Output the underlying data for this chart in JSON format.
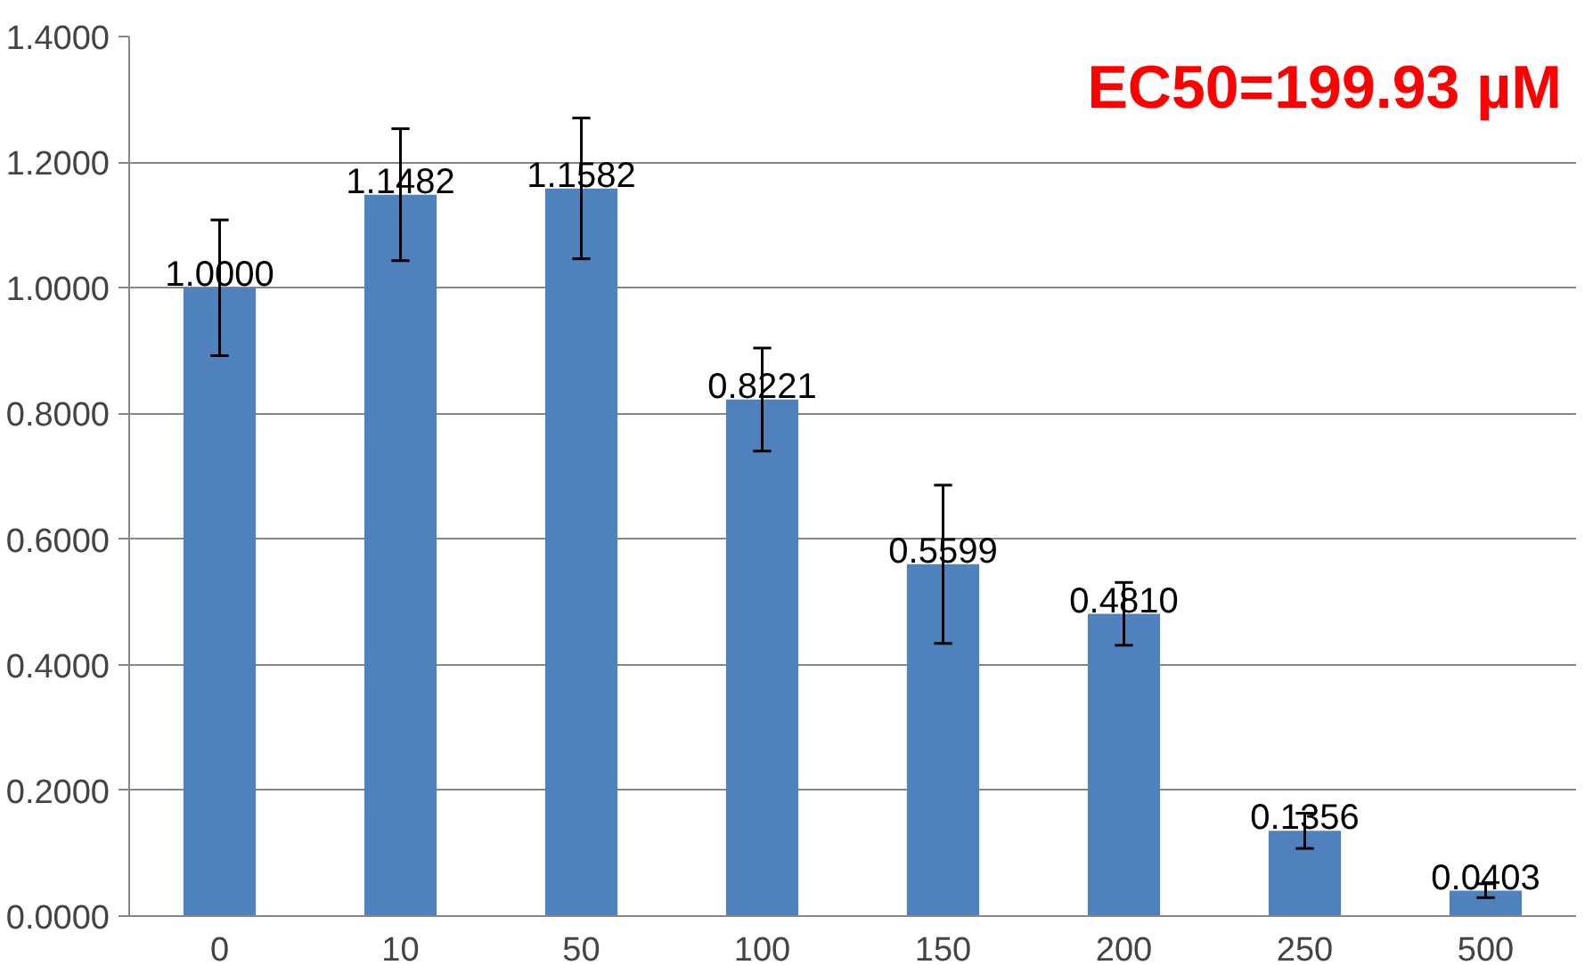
{
  "chart_data": {
    "type": "bar",
    "categories": [
      "0",
      "10",
      "50",
      "100",
      "150",
      "200",
      "250",
      "500"
    ],
    "values": [
      1.0,
      1.1482,
      1.1582,
      0.8221,
      0.5599,
      0.481,
      0.1356,
      0.0403
    ],
    "value_labels": [
      "1.0000",
      "1.1482",
      "1.1582",
      "0.8221",
      "0.5599",
      "0.4810",
      "0.1356",
      "0.0403"
    ],
    "errors": [
      0.108,
      0.105,
      0.112,
      0.082,
      0.126,
      0.05,
      0.028,
      0.011
    ],
    "color": "#4f81bd",
    "ylim": [
      0,
      1.4
    ],
    "yticks": [
      {
        "value": 0,
        "label": "0.0000"
      },
      {
        "value": 0.2,
        "label": "0.2000"
      },
      {
        "value": 0.4,
        "label": "0.4000"
      },
      {
        "value": 0.6,
        "label": "0.6000"
      },
      {
        "value": 0.8,
        "label": "0.8000"
      },
      {
        "value": 1.0,
        "label": "1.0000"
      },
      {
        "value": 1.2,
        "label": "1.2000"
      },
      {
        "value": 1.4,
        "label": "1.4000"
      }
    ],
    "grid": "y",
    "annotations": [
      "EC50=199.93 µM"
    ]
  }
}
